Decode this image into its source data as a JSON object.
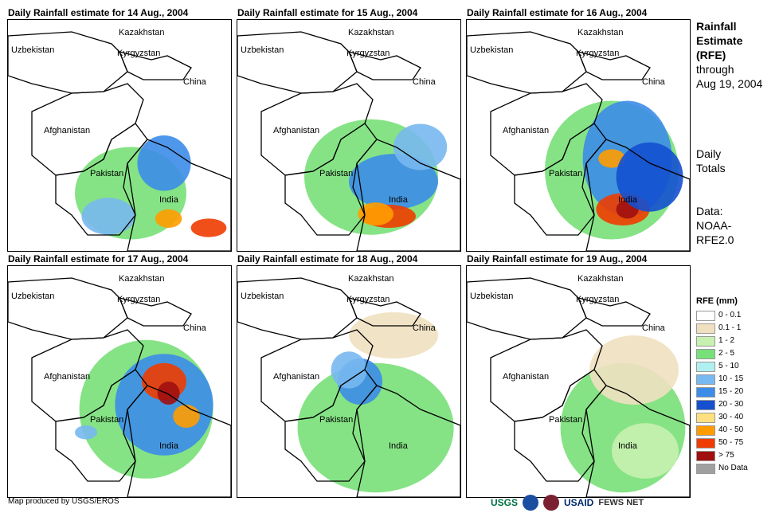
{
  "panels": [
    {
      "title": "Daily Rainfall estimate for 14 Aug., 2004",
      "key": "p14"
    },
    {
      "title": "Daily Rainfall estimate for 15 Aug., 2004",
      "key": "p15"
    },
    {
      "title": "Daily Rainfall estimate for 16 Aug., 2004",
      "key": "p16"
    },
    {
      "title": "Daily Rainfall estimate for 17 Aug., 2004",
      "key": "p17"
    },
    {
      "title": "Daily Rainfall estimate for 18 Aug., 2004",
      "key": "p18"
    },
    {
      "title": "Daily Rainfall estimate for 19 Aug., 2004",
      "key": "p19"
    }
  ],
  "map_labels": {
    "kazakhstan": "Kazakhstan",
    "uzbekistan": "Uzbekistan",
    "kyrgyzstan": "Kyrgyzstan",
    "china": "China",
    "afghanistan": "Afghanistan",
    "pakistan": "Pakistan",
    "india": "India"
  },
  "side": {
    "title_lines": [
      "Rainfall",
      "Estimate",
      "(RFE)"
    ],
    "through_lines": [
      "through",
      "Aug 19, 2004"
    ],
    "totals_lines": [
      "Daily",
      "Totals"
    ],
    "data_lines": [
      "Data:",
      "NOAA-",
      "RFE2.0"
    ]
  },
  "legend": {
    "title": "RFE (mm)",
    "items": [
      {
        "label": "0 - 0.1",
        "color": "#ffffff"
      },
      {
        "label": "0.1 - 1",
        "color": "#f0e0c0"
      },
      {
        "label": "1 - 2",
        "color": "#c8f0b0"
      },
      {
        "label": "2 - 5",
        "color": "#78e078"
      },
      {
        "label": "5 - 10",
        "color": "#b0f0f0"
      },
      {
        "label": "10 - 15",
        "color": "#78b8f0"
      },
      {
        "label": "15 - 20",
        "color": "#3c8ce8"
      },
      {
        "label": "20 - 30",
        "color": "#1450d0"
      },
      {
        "label": "30 - 40",
        "color": "#ffe080"
      },
      {
        "label": "40 - 50",
        "color": "#ff9c00"
      },
      {
        "label": "50 - 75",
        "color": "#f03c00"
      },
      {
        "label": "> 75",
        "color": "#a01010"
      },
      {
        "label": "No Data",
        "color": "#a0a0a0"
      }
    ]
  },
  "footer": "Map produced by USGS/EROS",
  "logos": {
    "usgs": "USGS",
    "usaid": "USAID",
    "fewsnet": "FEWS NET"
  },
  "intensity": {
    "p14": [
      [
        "#78e078",
        0.55,
        0.75,
        0.25,
        0.2
      ],
      [
        "#3c8ce8",
        0.7,
        0.62,
        0.12,
        0.12
      ],
      [
        "#f03c00",
        0.9,
        0.9,
        0.08,
        0.04
      ],
      [
        "#ff9c00",
        0.72,
        0.86,
        0.06,
        0.04
      ],
      [
        "#78b8f0",
        0.45,
        0.85,
        0.12,
        0.08
      ]
    ],
    "p15": [
      [
        "#78e078",
        0.6,
        0.68,
        0.3,
        0.25
      ],
      [
        "#3c8ce8",
        0.7,
        0.7,
        0.2,
        0.12
      ],
      [
        "#f03c00",
        0.68,
        0.85,
        0.12,
        0.05
      ],
      [
        "#ff9c00",
        0.62,
        0.84,
        0.08,
        0.05
      ],
      [
        "#78b8f0",
        0.82,
        0.55,
        0.12,
        0.1
      ]
    ],
    "p16": [
      [
        "#78e078",
        0.65,
        0.65,
        0.3,
        0.3
      ],
      [
        "#3c8ce8",
        0.72,
        0.6,
        0.2,
        0.25
      ],
      [
        "#f03c00",
        0.7,
        0.82,
        0.12,
        0.07
      ],
      [
        "#a01010",
        0.72,
        0.82,
        0.05,
        0.04
      ],
      [
        "#ff9c00",
        0.65,
        0.6,
        0.06,
        0.04
      ],
      [
        "#1450d0",
        0.82,
        0.68,
        0.15,
        0.15
      ]
    ],
    "p17": [
      [
        "#78e078",
        0.62,
        0.62,
        0.3,
        0.3
      ],
      [
        "#3c8ce8",
        0.7,
        0.6,
        0.22,
        0.22
      ],
      [
        "#f03c00",
        0.7,
        0.5,
        0.1,
        0.08
      ],
      [
        "#a01010",
        0.72,
        0.55,
        0.05,
        0.05
      ],
      [
        "#ff9c00",
        0.8,
        0.65,
        0.06,
        0.05
      ],
      [
        "#78b8f0",
        0.35,
        0.72,
        0.05,
        0.03
      ]
    ],
    "p18": [
      [
        "#78e078",
        0.62,
        0.7,
        0.35,
        0.28
      ],
      [
        "#3c8ce8",
        0.55,
        0.5,
        0.1,
        0.1
      ],
      [
        "#78b8f0",
        0.5,
        0.45,
        0.08,
        0.08
      ],
      [
        "#f0e0c0",
        0.7,
        0.3,
        0.2,
        0.1
      ]
    ],
    "p19": [
      [
        "#78e078",
        0.7,
        0.7,
        0.28,
        0.28
      ],
      [
        "#f0e0c0",
        0.75,
        0.45,
        0.2,
        0.15
      ],
      [
        "#c8f0b0",
        0.8,
        0.8,
        0.15,
        0.12
      ]
    ]
  }
}
